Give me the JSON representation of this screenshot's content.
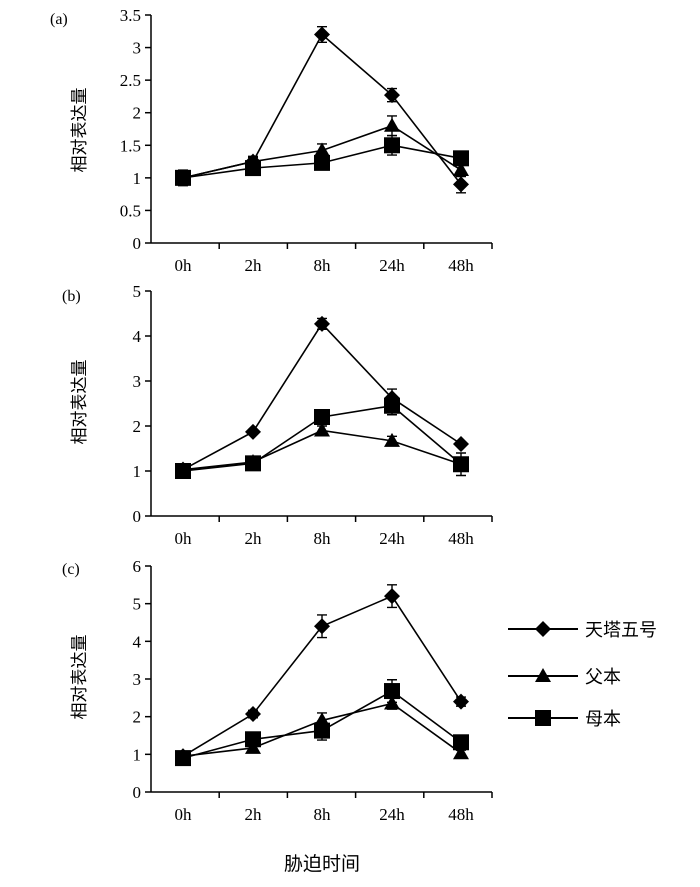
{
  "chart_data": [
    {
      "type": "line",
      "panel_label": "(a)",
      "ylabel": "相对表达量",
      "categories": [
        "0h",
        "2h",
        "8h",
        "24h",
        "48h"
      ],
      "ylim": [
        0,
        3.5
      ],
      "yticks": [
        0,
        0.5,
        1,
        1.5,
        2,
        2.5,
        3,
        3.5
      ],
      "ytick_labels": [
        "0",
        "0.5",
        "1",
        "1.5",
        "2",
        "2.5",
        "3",
        "3.5"
      ],
      "series": [
        {
          "name": "天塔五号",
          "marker": "diamond",
          "values": [
            1.0,
            1.25,
            3.2,
            2.27,
            0.9
          ],
          "errors": [
            0.12,
            0.06,
            0.12,
            0.1,
            0.13
          ]
        },
        {
          "name": "父本",
          "marker": "triangle",
          "values": [
            1.0,
            1.25,
            1.42,
            1.8,
            1.12
          ],
          "errors": [
            0.1,
            0.08,
            0.1,
            0.15,
            0.1
          ]
        },
        {
          "name": "母本",
          "marker": "square",
          "values": [
            1.0,
            1.15,
            1.23,
            1.5,
            1.3
          ],
          "errors": [
            0.1,
            0.06,
            0.06,
            0.15,
            0.1
          ]
        }
      ]
    },
    {
      "type": "line",
      "panel_label": "(b)",
      "ylabel": "相对表达量",
      "categories": [
        "0h",
        "2h",
        "8h",
        "24h",
        "48h"
      ],
      "ylim": [
        0,
        5
      ],
      "yticks": [
        0,
        1,
        2,
        3,
        4,
        5
      ],
      "ytick_labels": [
        "0",
        "1",
        "2",
        "3",
        "4",
        "5"
      ],
      "series": [
        {
          "name": "天塔五号",
          "marker": "diamond",
          "values": [
            1.03,
            1.87,
            4.27,
            2.62,
            1.6
          ],
          "errors": [
            0.05,
            0.05,
            0.12,
            0.2,
            0.05
          ]
        },
        {
          "name": "父本",
          "marker": "triangle",
          "values": [
            1.03,
            1.2,
            1.9,
            1.67,
            1.15
          ],
          "errors": [
            0.05,
            0.05,
            0.1,
            0.1,
            0.1
          ]
        },
        {
          "name": "母本",
          "marker": "square",
          "values": [
            1.0,
            1.17,
            2.2,
            2.45,
            1.15
          ],
          "errors": [
            0.08,
            0.06,
            0.15,
            0.2,
            0.25
          ]
        }
      ]
    },
    {
      "type": "line",
      "panel_label": "(c)",
      "ylabel": "相对表达量",
      "categories": [
        "0h",
        "2h",
        "8h",
        "24h",
        "48h"
      ],
      "ylim": [
        0,
        6
      ],
      "yticks": [
        0,
        1,
        2,
        3,
        4,
        5,
        6
      ],
      "ytick_labels": [
        "0",
        "1",
        "2",
        "3",
        "4",
        "5",
        "6"
      ],
      "series": [
        {
          "name": "天塔五号",
          "marker": "diamond",
          "values": [
            0.95,
            2.07,
            4.4,
            5.2,
            2.4
          ],
          "errors": [
            0.05,
            0.1,
            0.3,
            0.3,
            0.12
          ]
        },
        {
          "name": "父本",
          "marker": "triangle",
          "values": [
            0.95,
            1.17,
            1.9,
            2.35,
            1.03
          ],
          "errors": [
            0.05,
            0.08,
            0.2,
            0.15,
            0.08
          ]
        },
        {
          "name": "母本",
          "marker": "square",
          "values": [
            0.9,
            1.4,
            1.63,
            2.68,
            1.32
          ],
          "errors": [
            0.05,
            0.12,
            0.25,
            0.3,
            0.1
          ]
        }
      ]
    }
  ],
  "legend": [
    "天塔五号",
    "父本",
    "母本"
  ],
  "xlabel": "胁迫时间"
}
